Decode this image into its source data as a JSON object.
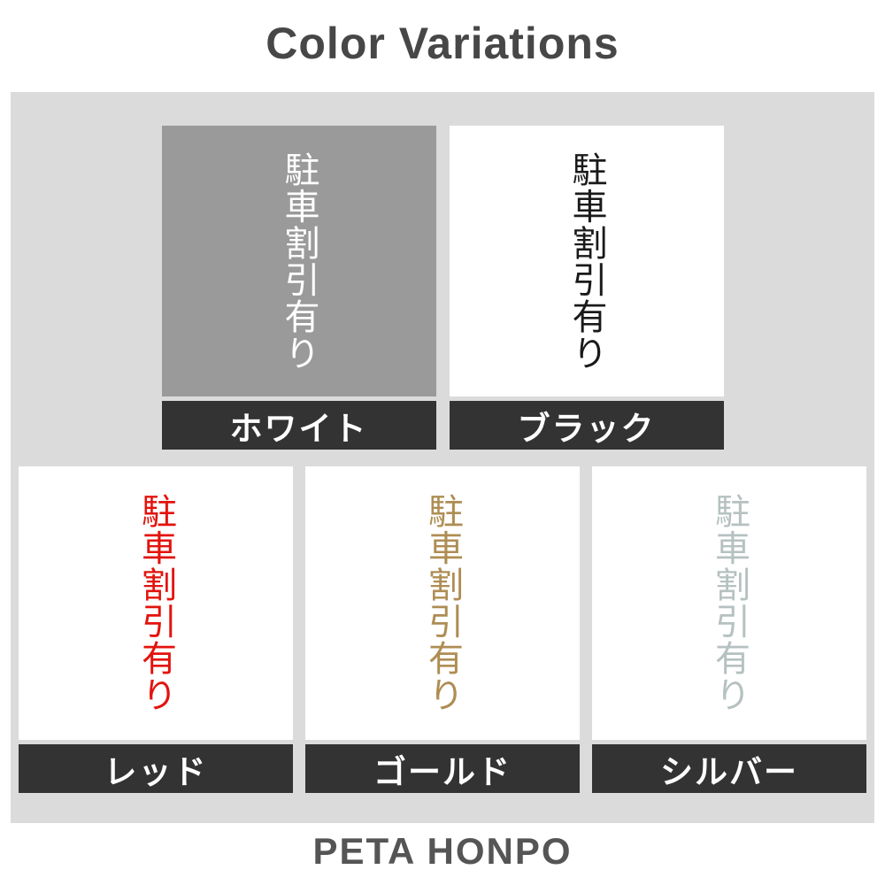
{
  "title": "Color Variations",
  "footer_brand": "PETA HONPO",
  "sample_text": "駐車割引有り",
  "colors": {
    "page_bg": "#ffffff",
    "panel_bg": "#dbdbdb",
    "label_bar_bg": "#333333",
    "title_color": "#474747",
    "footer_color": "#555555"
  },
  "variations": [
    {
      "name": "ホワイト",
      "text_color": "#ffffff",
      "swatch_bg": "#9a9a9a"
    },
    {
      "name": "ブラック",
      "text_color": "#1a1a1a",
      "swatch_bg": "#ffffff"
    },
    {
      "name": "レッド",
      "text_color": "#e3130d",
      "swatch_bg": "#ffffff"
    },
    {
      "name": "ゴールド",
      "text_color": "#ae8d53",
      "swatch_bg": "#ffffff"
    },
    {
      "name": "シルバー",
      "text_color": "#b6c1c1",
      "swatch_bg": "#ffffff"
    }
  ]
}
